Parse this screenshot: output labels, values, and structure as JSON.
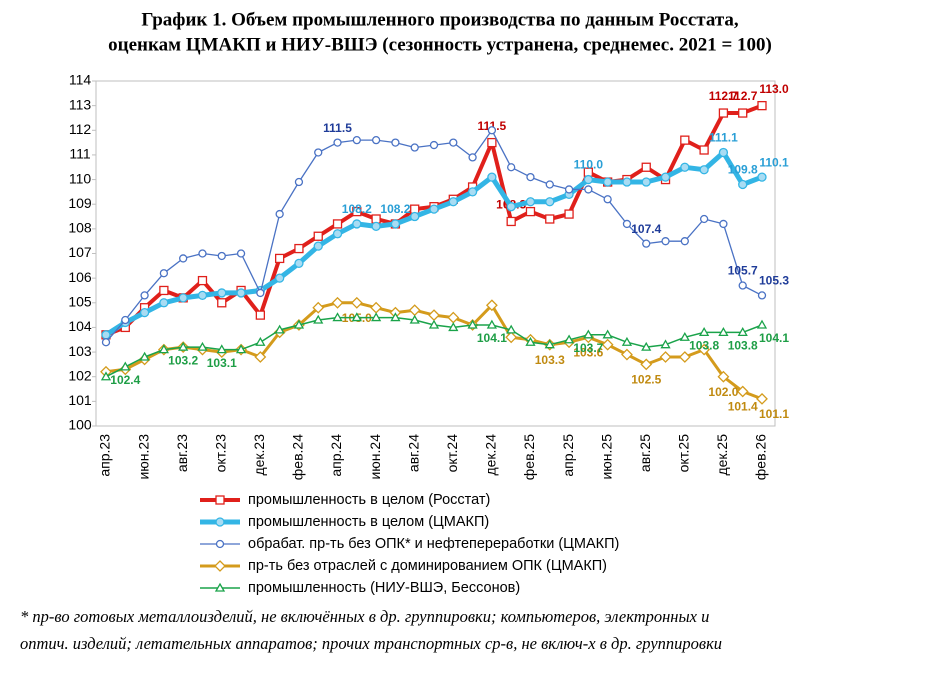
{
  "chart_data": {
    "type": "line",
    "title": [
      "График 1. Объем промышленного производства по данным Росстата,",
      "оценкам ЦМАКП и НИУ-ВШЭ (сезонность устранена, среднемес. 2021 = 100)"
    ],
    "footnote": [
      "* пр-во готовых металлоизделий, не включённых в др. группировки; компьютеров, электронных и",
      "оптич. изделий; летательных аппаратов; прочих транспортных ср-в, не включ-х в др. группировки"
    ],
    "categories": [
      "апр.23",
      null,
      "июн.23",
      null,
      "авг.23",
      null,
      "окт.23",
      null,
      "дек.23",
      null,
      "фев.24",
      null,
      "апр.24",
      null,
      "июн.24",
      null,
      "авг.24",
      null,
      "окт.24",
      null,
      "дек.24",
      null,
      "фев.25",
      null,
      "апр.25",
      null,
      "июн.25",
      null,
      "авг.25",
      null,
      "окт.25",
      null,
      "дек.25",
      null,
      "фев.26"
    ],
    "ylim": [
      100,
      114
    ],
    "yticks": [
      100,
      101,
      102,
      103,
      104,
      105,
      106,
      107,
      108,
      109,
      110,
      111,
      112,
      113,
      114
    ],
    "grid": false,
    "series": [
      {
        "name": "промышленность в целом (Росстат)",
        "color": "#e0201b",
        "label_color": "#c00000",
        "marker": "square",
        "width": 4,
        "values": [
          103.7,
          104.0,
          104.8,
          105.5,
          105.2,
          105.9,
          105.0,
          105.5,
          104.5,
          106.8,
          107.2,
          107.7,
          108.2,
          108.7,
          108.4,
          108.2,
          108.8,
          108.9,
          109.2,
          109.7,
          111.5,
          108.3,
          108.7,
          108.4,
          108.6,
          110.3,
          109.9,
          110.0,
          110.5,
          110.0,
          111.6,
          111.2,
          112.7,
          112.7,
          113.0
        ],
        "value_labels": [
          null,
          null,
          null,
          null,
          null,
          null,
          null,
          null,
          null,
          null,
          null,
          null,
          null,
          null,
          null,
          null,
          null,
          null,
          null,
          null,
          "111.5",
          "108.3",
          null,
          null,
          null,
          null,
          null,
          null,
          null,
          null,
          null,
          null,
          "112.7",
          "112.7",
          "113.0"
        ]
      },
      {
        "name": "промышленность в целом (ЦМАКП)",
        "color": "#33b5e5",
        "label_color": "#2a9fd6",
        "marker": "circle-filled",
        "width": 5,
        "values": [
          103.7,
          104.2,
          104.6,
          105.0,
          105.2,
          105.3,
          105.4,
          105.4,
          105.5,
          106.0,
          106.6,
          107.3,
          107.8,
          108.2,
          108.1,
          108.2,
          108.5,
          108.8,
          109.1,
          109.5,
          110.1,
          108.9,
          109.1,
          109.1,
          109.4,
          110.0,
          109.9,
          109.9,
          109.9,
          110.1,
          110.5,
          110.4,
          111.1,
          109.8,
          110.1
        ],
        "value_labels": [
          null,
          null,
          null,
          null,
          null,
          null,
          null,
          null,
          null,
          null,
          null,
          null,
          null,
          "108.2",
          null,
          "108.2",
          null,
          null,
          null,
          null,
          null,
          null,
          null,
          null,
          null,
          "110.0",
          null,
          null,
          null,
          null,
          null,
          null,
          "111.1",
          "109.8",
          "110.1"
        ]
      },
      {
        "name": "обрабат. пр-ть без ОПК* и нефтепереработки (ЦМАКП)",
        "color": "#4a72c4",
        "label_color": "#1f3c99",
        "marker": "circle",
        "width": 1.3,
        "values": [
          103.4,
          104.3,
          105.3,
          106.2,
          106.8,
          107.0,
          106.9,
          107.0,
          105.4,
          108.6,
          109.9,
          111.1,
          111.5,
          111.6,
          111.6,
          111.5,
          111.3,
          111.4,
          111.5,
          110.9,
          112.0,
          110.5,
          110.1,
          109.8,
          109.6,
          109.6,
          109.2,
          108.2,
          107.4,
          107.5,
          107.5,
          108.4,
          108.2,
          105.7,
          105.3
        ],
        "value_labels": [
          null,
          null,
          null,
          null,
          null,
          null,
          null,
          null,
          null,
          null,
          null,
          null,
          "111.5",
          null,
          null,
          null,
          null,
          null,
          null,
          null,
          null,
          null,
          null,
          null,
          null,
          null,
          null,
          null,
          "107.4",
          null,
          null,
          null,
          null,
          "105.7",
          "105.3"
        ]
      },
      {
        "name": "пр-ть без отраслей с доминированием ОПК (ЦМАКП)",
        "color": "#d49b1c",
        "label_color": "#c08a10",
        "marker": "diamond",
        "width": 3,
        "values": [
          102.2,
          102.3,
          102.7,
          103.1,
          103.2,
          103.1,
          103.0,
          103.1,
          102.8,
          103.8,
          104.1,
          104.8,
          105.0,
          105.0,
          104.8,
          104.6,
          104.7,
          104.5,
          104.4,
          104.1,
          104.9,
          103.6,
          103.5,
          103.3,
          103.4,
          103.6,
          103.3,
          102.9,
          102.5,
          102.8,
          102.8,
          103.1,
          102.0,
          101.4,
          101.1
        ],
        "value_labels": [
          null,
          null,
          null,
          null,
          null,
          null,
          null,
          null,
          null,
          null,
          null,
          null,
          null,
          "105.0",
          null,
          null,
          null,
          null,
          null,
          null,
          null,
          null,
          null,
          "103.3",
          null,
          "103.6",
          null,
          null,
          "102.5",
          null,
          null,
          null,
          "102.0",
          "101.4",
          "101.1"
        ]
      },
      {
        "name": "промышленность (НИУ-ВШЭ, Бессонов)",
        "color": "#1aa34a",
        "label_color": "#1e9e46",
        "marker": "triangle",
        "width": 1.5,
        "values": [
          102.0,
          102.4,
          102.8,
          103.1,
          103.2,
          103.2,
          103.1,
          103.1,
          103.4,
          103.9,
          104.1,
          104.3,
          104.4,
          104.4,
          104.4,
          104.4,
          104.3,
          104.1,
          104.0,
          104.1,
          104.1,
          103.9,
          103.4,
          103.3,
          103.5,
          103.7,
          103.7,
          103.4,
          103.2,
          103.3,
          103.6,
          103.8,
          103.8,
          103.8,
          104.1
        ],
        "value_labels": [
          null,
          "102.4",
          null,
          null,
          "103.2",
          null,
          "103.1",
          null,
          null,
          null,
          null,
          null,
          null,
          null,
          null,
          null,
          null,
          null,
          null,
          null,
          "104.1",
          null,
          null,
          null,
          null,
          "103.7",
          null,
          null,
          null,
          null,
          null,
          "103.8",
          null,
          "103.8",
          "104.1"
        ]
      }
    ]
  }
}
